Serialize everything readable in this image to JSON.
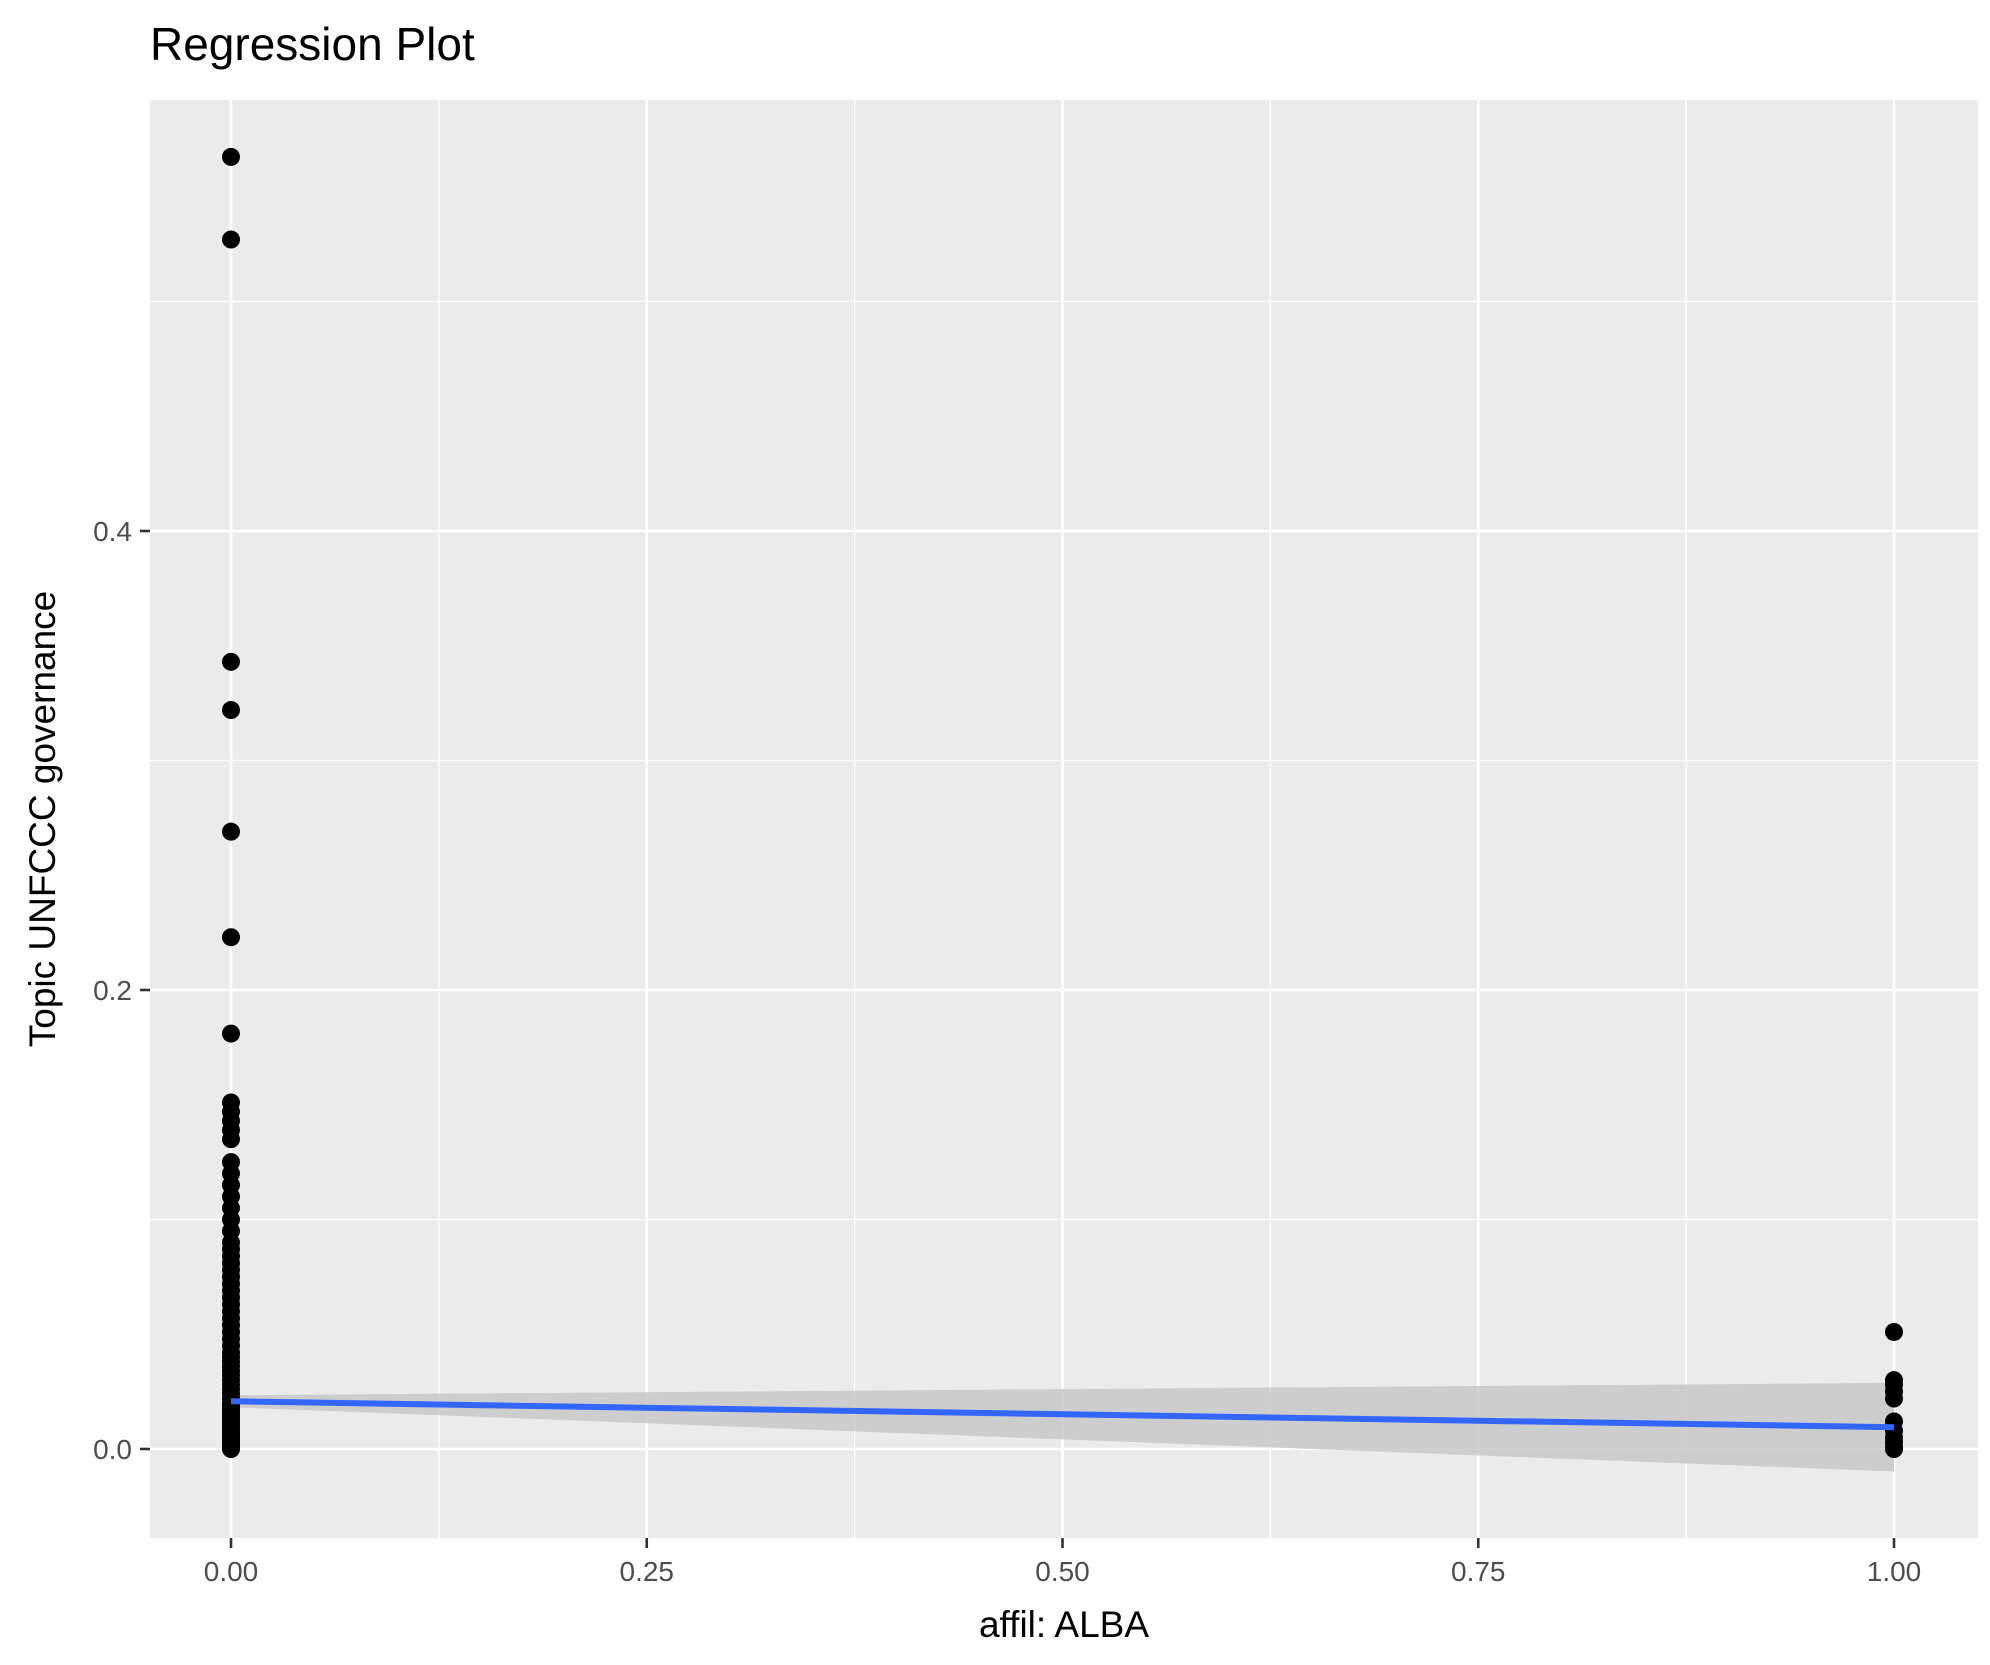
{
  "chart_data": {
    "type": "scatter",
    "title": "Regression Plot",
    "xlabel": "affil: ALBA",
    "ylabel": "Topic UNFCCC governance",
    "xlim": [
      -0.05,
      1.05
    ],
    "ylim": [
      -0.038,
      0.57
    ],
    "x_ticks": [
      {
        "value": 0.0,
        "label": "0.00"
      },
      {
        "value": 0.25,
        "label": "0.25"
      },
      {
        "value": 0.5,
        "label": "0.50"
      },
      {
        "value": 0.75,
        "label": "0.75"
      },
      {
        "value": 1.0,
        "label": "1.00"
      }
    ],
    "y_ticks": [
      {
        "value": 0.0,
        "label": "0.0"
      },
      {
        "value": 0.2,
        "label": "0.2"
      },
      {
        "value": 0.4,
        "label": "0.4"
      }
    ],
    "grid": true,
    "colors": {
      "panel": "#ebebeb",
      "grid_major": "#ffffff",
      "points": "#000000",
      "fit_line": "#3366ff",
      "ribbon": "#c8c8c8"
    },
    "points": {
      "x": [
        0,
        0,
        0,
        0,
        0,
        0,
        0,
        0,
        0,
        0,
        0,
        0,
        0,
        0,
        0,
        0,
        0,
        0,
        0,
        0,
        0,
        0,
        0,
        0,
        0,
        0,
        0,
        0,
        0,
        0,
        0,
        0,
        0,
        0,
        0,
        0,
        0,
        0,
        0,
        0,
        0,
        0,
        0,
        0,
        0,
        0,
        0,
        0,
        0,
        0,
        0,
        0,
        0,
        0,
        0,
        0,
        0,
        0,
        0,
        0,
        0,
        0,
        0,
        0,
        0,
        0,
        0,
        0,
        0,
        0,
        0,
        0,
        0,
        0,
        1,
        1,
        1,
        1,
        1,
        1,
        1,
        1,
        1,
        1,
        1
      ],
      "y": [
        0.563,
        0.527,
        0.343,
        0.322,
        0.269,
        0.223,
        0.181,
        0.151,
        0.147,
        0.143,
        0.139,
        0.135,
        0.125,
        0.12,
        0.115,
        0.11,
        0.105,
        0.1,
        0.095,
        0.09,
        0.087,
        0.084,
        0.081,
        0.078,
        0.075,
        0.072,
        0.069,
        0.066,
        0.063,
        0.06,
        0.057,
        0.054,
        0.051,
        0.048,
        0.045,
        0.042,
        0.04,
        0.038,
        0.036,
        0.034,
        0.032,
        0.03,
        0.028,
        0.026,
        0.024,
        0.022,
        0.02,
        0.019,
        0.018,
        0.017,
        0.016,
        0.015,
        0.014,
        0.013,
        0.012,
        0.011,
        0.01,
        0.009,
        0.008,
        0.007,
        0.0065,
        0.006,
        0.0055,
        0.005,
        0.0045,
        0.004,
        0.0035,
        0.003,
        0.0025,
        0.002,
        0.0015,
        0.001,
        0.0005,
        0.0,
        0.051,
        0.03,
        0.028,
        0.025,
        0.022,
        0.012,
        0.008,
        0.005,
        0.003,
        0.001,
        0.0
      ]
    },
    "fit": {
      "method": "linear",
      "x": [
        0,
        1
      ],
      "y": [
        0.0208,
        0.0095
      ],
      "ci_lower": [
        0.0182,
        -0.0098
      ],
      "ci_upper": [
        0.0234,
        0.0288
      ]
    }
  }
}
